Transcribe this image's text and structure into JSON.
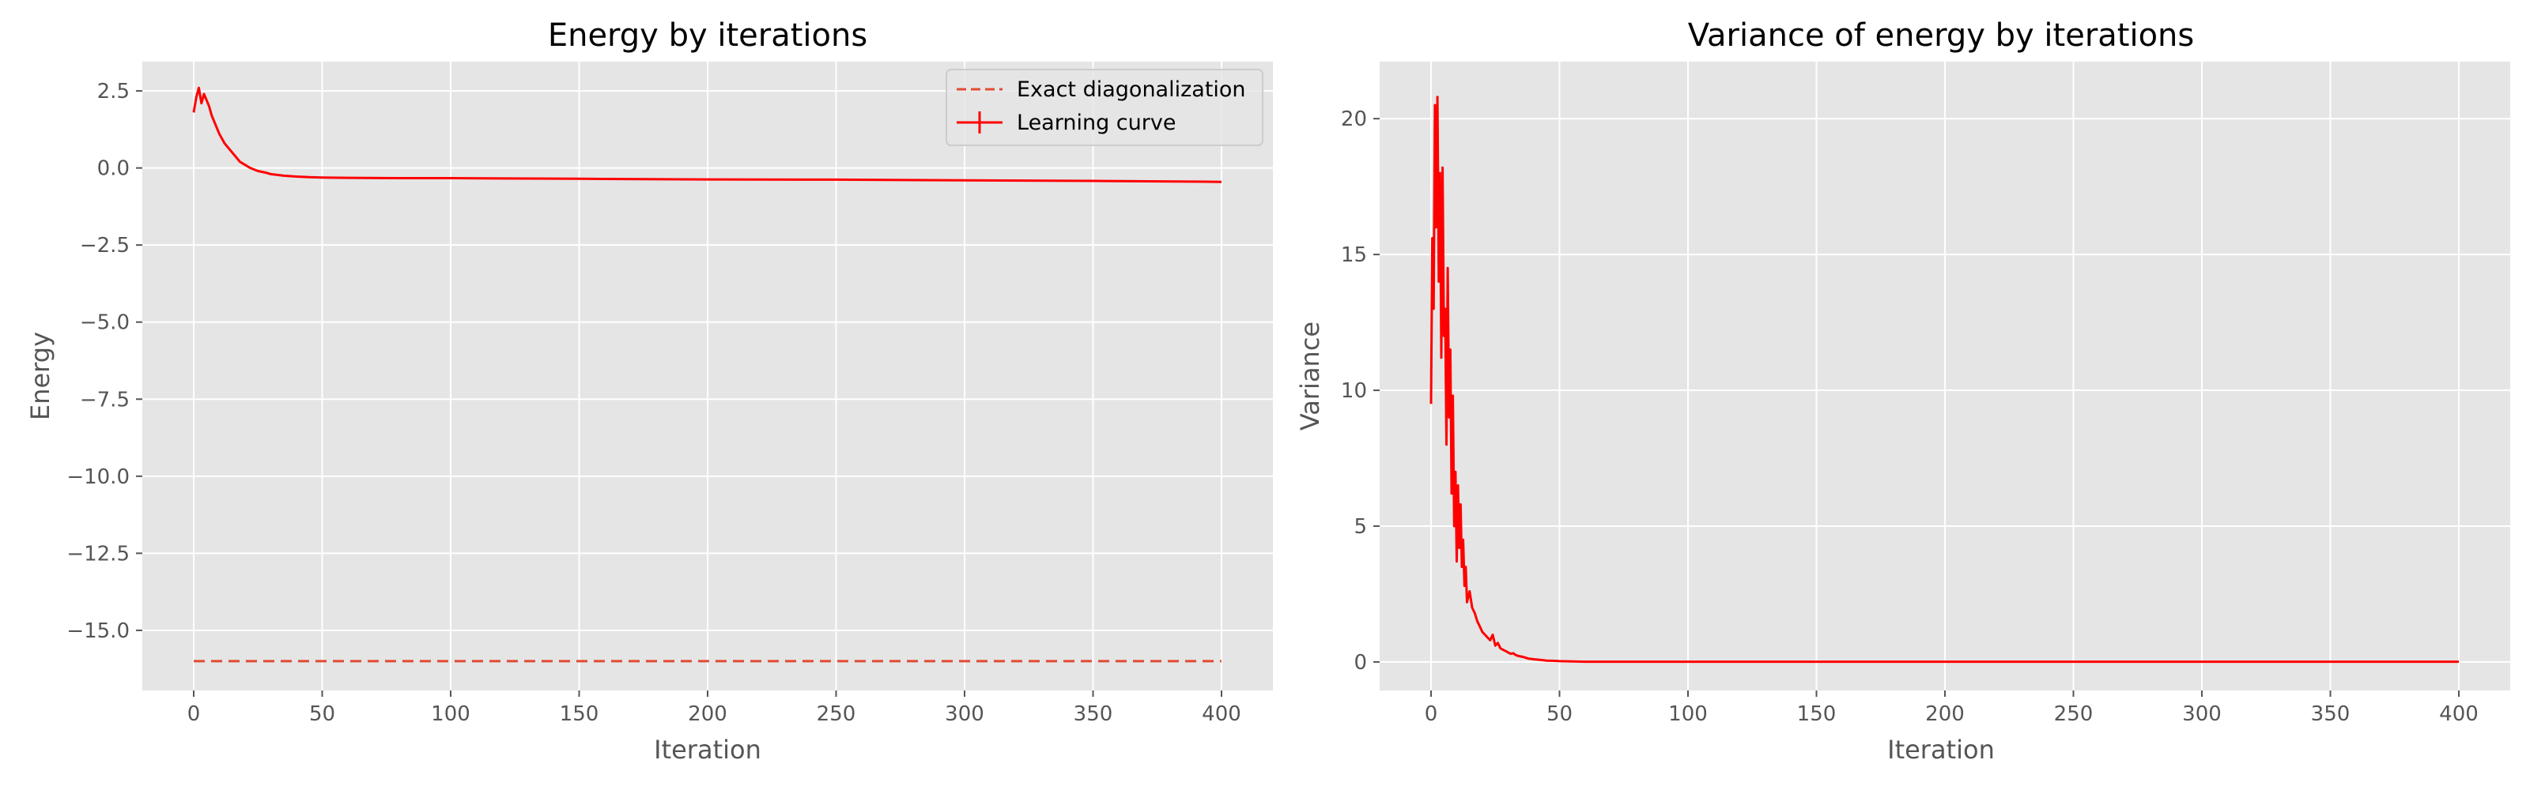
{
  "chart_data": [
    {
      "type": "line",
      "title": "Energy by iterations",
      "xlabel": "Iteration",
      "ylabel": "Energy",
      "xlim": [
        -20,
        420
      ],
      "ylim": [
        -16.95,
        3.45
      ],
      "xticks": [
        0,
        50,
        100,
        150,
        200,
        250,
        300,
        350,
        400
      ],
      "yticks": [
        2.5,
        0.0,
        -2.5,
        -5.0,
        -7.5,
        -10.0,
        -12.5,
        -15.0
      ],
      "ytick_labels": [
        "2.5",
        "0.0",
        "−2.5",
        "−5.0",
        "−7.5",
        "−10.0",
        "−12.5",
        "−15.0"
      ],
      "grid": true,
      "legend": "top-right",
      "series": [
        {
          "name": "Exact diagonalization",
          "style": "dashed",
          "color": "#e24a33",
          "x": [
            0,
            400
          ],
          "y": [
            -16.0,
            -16.0
          ]
        },
        {
          "name": "Learning curve",
          "style": "solid",
          "color": "#ff0000",
          "x": [
            0,
            1,
            2,
            3,
            4,
            5,
            6,
            7,
            8,
            9,
            10,
            12,
            14,
            16,
            18,
            20,
            22,
            25,
            28,
            30,
            35,
            40,
            45,
            50,
            60,
            80,
            100,
            150,
            200,
            250,
            300,
            350,
            400
          ],
          "y": [
            1.8,
            2.3,
            2.6,
            2.1,
            2.4,
            2.2,
            2.0,
            1.7,
            1.5,
            1.3,
            1.1,
            0.8,
            0.6,
            0.4,
            0.2,
            0.1,
            0.0,
            -0.1,
            -0.15,
            -0.2,
            -0.25,
            -0.28,
            -0.3,
            -0.31,
            -0.32,
            -0.33,
            -0.33,
            -0.35,
            -0.37,
            -0.38,
            -0.4,
            -0.42,
            -0.45
          ]
        }
      ]
    },
    {
      "type": "line",
      "title": "Variance of energy by iterations",
      "xlabel": "Iteration",
      "ylabel": "Variance",
      "xlim": [
        -20,
        420
      ],
      "ylim": [
        -1.05,
        22.1
      ],
      "xticks": [
        0,
        50,
        100,
        150,
        200,
        250,
        300,
        350,
        400
      ],
      "yticks": [
        0,
        5,
        10,
        15,
        20
      ],
      "ytick_labels": [
        "0",
        "5",
        "10",
        "15",
        "20"
      ],
      "grid": true,
      "series": [
        {
          "color": "#ff0000",
          "x": [
            0,
            0.5,
            1,
            1.5,
            2,
            2.5,
            3,
            3.5,
            4,
            4.5,
            5,
            5.5,
            6,
            6.5,
            7,
            7.5,
            8,
            8.5,
            9,
            9.5,
            10,
            10.5,
            11,
            11.5,
            12,
            12.5,
            13,
            13.5,
            14,
            15,
            16,
            17,
            18,
            19,
            20,
            21,
            22,
            23,
            24,
            25,
            26,
            27,
            28,
            29,
            30,
            31,
            32,
            33,
            34,
            35,
            36,
            38,
            40,
            42,
            45,
            48,
            50,
            55,
            60,
            80,
            100,
            150,
            200,
            250,
            300,
            350,
            400
          ],
          "y": [
            9.5,
            15.6,
            13.0,
            20.5,
            16.0,
            20.8,
            14.0,
            18.0,
            11.2,
            18.2,
            12.0,
            13.0,
            8.0,
            14.5,
            9.0,
            11.5,
            6.2,
            9.8,
            5.0,
            7.0,
            3.7,
            6.5,
            4.2,
            5.8,
            3.5,
            4.5,
            2.8,
            3.5,
            2.2,
            2.6,
            2.0,
            1.8,
            1.5,
            1.3,
            1.1,
            1.0,
            0.9,
            0.8,
            1.0,
            0.6,
            0.7,
            0.5,
            0.45,
            0.4,
            0.35,
            0.3,
            0.32,
            0.25,
            0.22,
            0.2,
            0.18,
            0.12,
            0.1,
            0.08,
            0.05,
            0.04,
            0.03,
            0.02,
            0.01,
            0.01,
            0.01,
            0.01,
            0.01,
            0.01,
            0.01,
            0.01,
            0.01
          ]
        }
      ]
    }
  ]
}
